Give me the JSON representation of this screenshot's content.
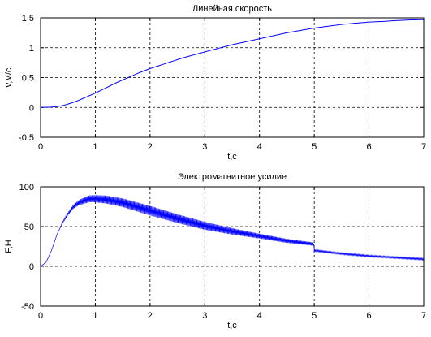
{
  "colors": {
    "line": "#0000ff",
    "axes": "#000000",
    "background": "#ffffff",
    "grid": "#000000"
  },
  "chart_data": [
    {
      "type": "line",
      "title": "Линейная скорость",
      "xlabel": "t,c",
      "ylabel": "v,м/c",
      "xlim": [
        0,
        7
      ],
      "ylim": [
        -0.5,
        1.5
      ],
      "grid": true,
      "grid_style": "dashed",
      "x_ticks": [
        "0",
        "1",
        "2",
        "3",
        "4",
        "5",
        "6",
        "7"
      ],
      "y_ticks": [
        "-0.5",
        "0",
        "0.5",
        "1",
        "1.5"
      ],
      "series": [
        {
          "color": "#0000ff",
          "x": [
            0,
            0.2,
            0.3,
            0.4,
            0.5,
            0.6,
            0.7,
            0.8,
            0.9,
            1.0,
            1.2,
            1.4,
            1.6,
            1.8,
            2.0,
            2.2,
            2.4,
            2.6,
            2.8,
            3.0,
            3.25,
            3.5,
            3.75,
            4.0,
            4.25,
            4.5,
            4.75,
            5.0,
            5.25,
            5.5,
            5.75,
            6.0,
            6.25,
            6.5,
            6.75,
            7.0
          ],
          "y": [
            0,
            0.005,
            0.015,
            0.03,
            0.055,
            0.085,
            0.12,
            0.16,
            0.2,
            0.24,
            0.33,
            0.42,
            0.5,
            0.58,
            0.65,
            0.71,
            0.77,
            0.83,
            0.88,
            0.93,
            0.99,
            1.05,
            1.1,
            1.15,
            1.2,
            1.25,
            1.29,
            1.33,
            1.36,
            1.39,
            1.41,
            1.43,
            1.44,
            1.455,
            1.465,
            1.47
          ]
        }
      ]
    },
    {
      "type": "line",
      "title": "Электромагнитное усилие",
      "xlabel": "t,c",
      "ylabel": "F,H",
      "xlim": [
        0,
        7
      ],
      "ylim": [
        -50,
        100
      ],
      "grid": true,
      "grid_style": "dashed",
      "x_ticks": [
        "0",
        "1",
        "2",
        "3",
        "4",
        "5",
        "6",
        "7"
      ],
      "y_ticks": [
        "-50",
        "0",
        "50",
        "100"
      ],
      "series": [
        {
          "color": "#0000ff",
          "style": "oscillating",
          "x": [
            0,
            0.1,
            0.2,
            0.3,
            0.4,
            0.5,
            0.6,
            0.7,
            0.8,
            0.9,
            1.0,
            1.2,
            1.5,
            2.0,
            2.5,
            3.0,
            3.5,
            4.0,
            4.5,
            4.99,
            5.0,
            5.5,
            6.0,
            6.5,
            7.0
          ],
          "y": [
            0,
            5,
            20,
            40,
            55,
            66,
            75,
            80,
            83,
            85,
            85,
            84,
            80,
            70,
            60,
            51,
            44,
            38,
            32,
            28,
            20,
            16,
            13,
            11,
            9
          ],
          "oscillation": {
            "x": [
              0.3,
              0.8,
              1.2,
              2.0,
              3.0,
              4.0,
              5.0,
              5.01,
              6.0,
              7.0
            ],
            "amplitude": [
              0,
              4,
              5,
              6,
              5,
              3,
              2,
              1,
              1,
              1
            ]
          }
        }
      ]
    }
  ]
}
